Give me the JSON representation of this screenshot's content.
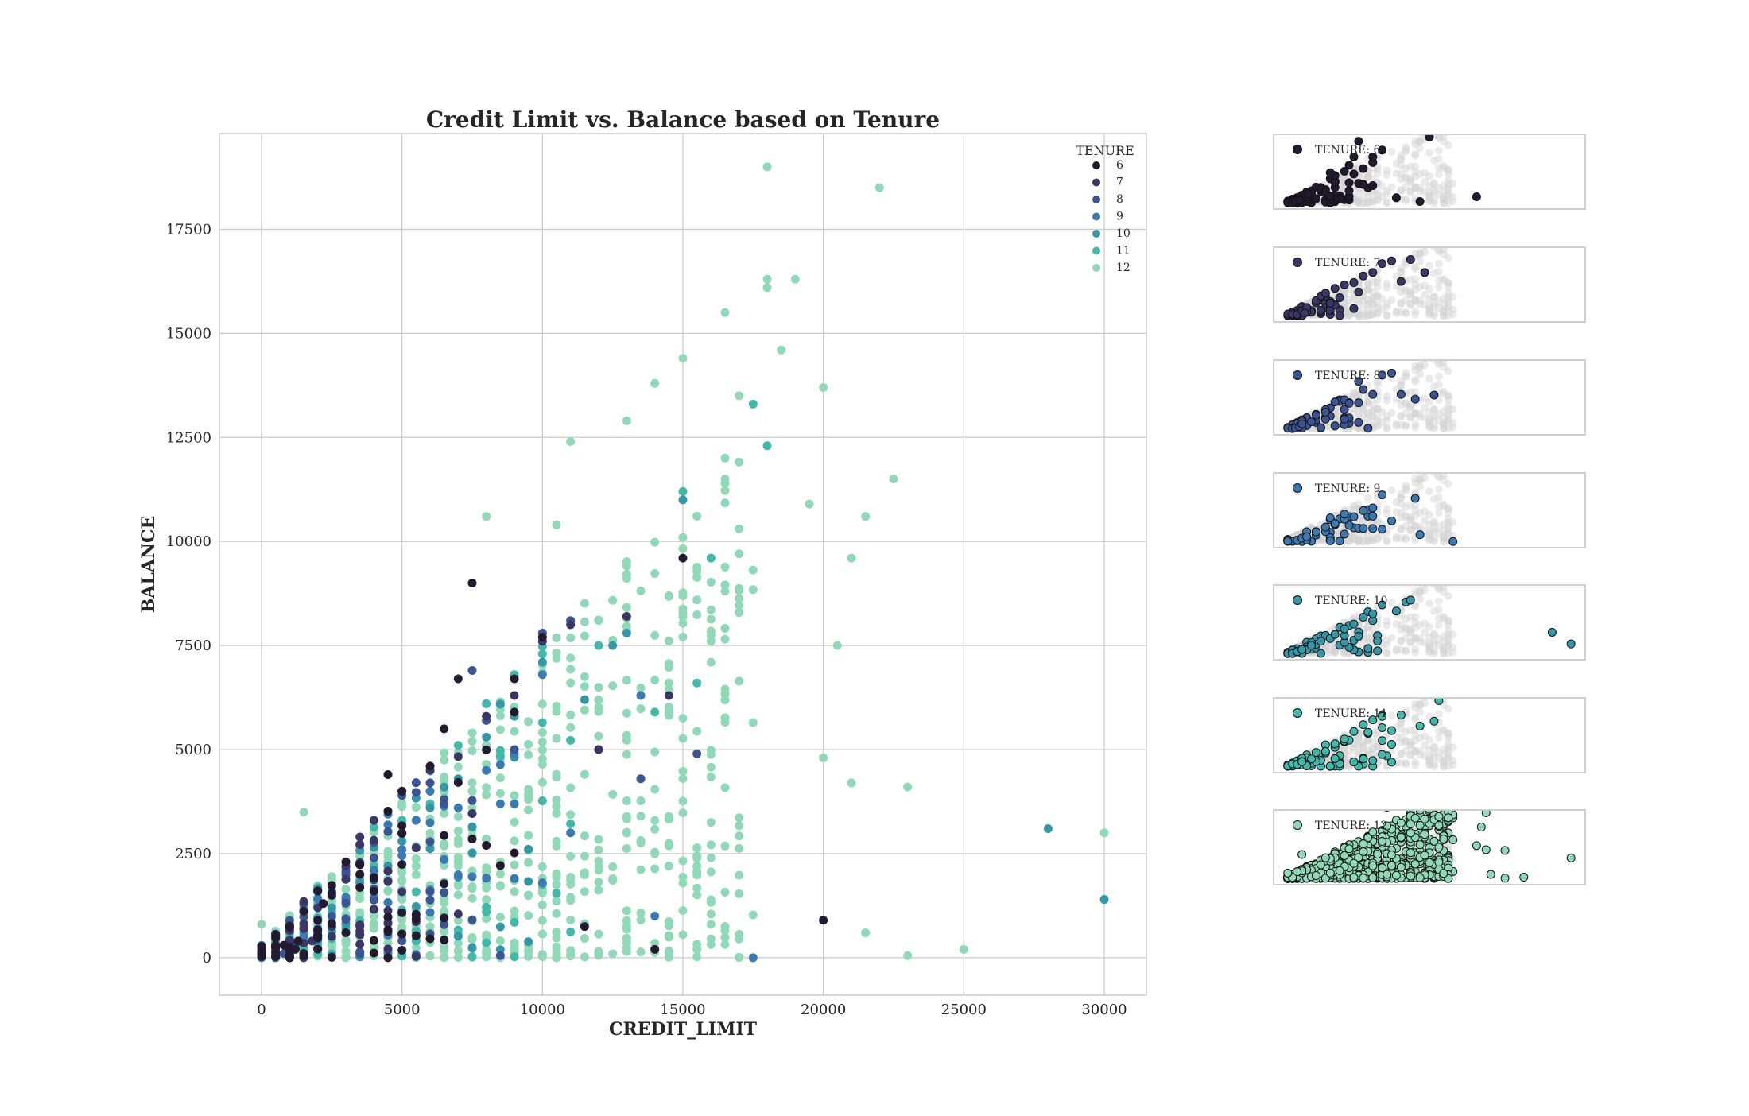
{
  "chart_data": [
    {
      "type": "scatter",
      "title": "Credit Limit vs. Balance based on Tenure",
      "xlabel": "CREDIT_LIMIT",
      "ylabel": "BALANCE",
      "xlim": [
        -1500,
        31500
      ],
      "ylim": [
        -900,
        19800
      ],
      "xticks": [
        0,
        5000,
        10000,
        15000,
        20000,
        25000,
        30000
      ],
      "yticks": [
        0,
        2500,
        5000,
        7500,
        10000,
        12500,
        15000,
        17500
      ],
      "grid": true,
      "legend": {
        "title": "TENURE",
        "placement": "top-right",
        "entries": [
          "6",
          "7",
          "8",
          "9",
          "10",
          "11",
          "12"
        ]
      },
      "series": [
        {
          "name": "6",
          "color": "#221b30",
          "x": [
            1000,
            1200,
            1500,
            500,
            800,
            2000,
            2500,
            3000,
            3500,
            4000,
            5000,
            6500,
            7000,
            7500,
            8000,
            9000,
            10000,
            11500,
            14000,
            15000,
            20000,
            1500,
            2200,
            9000,
            4500,
            1300
          ],
          "y": [
            0,
            200,
            100,
            30,
            300,
            900,
            1500,
            600,
            2000,
            1600,
            4000,
            5500,
            6700,
            9000,
            2700,
            5900,
            7700,
            750,
            200,
            9600,
            900,
            50,
            1300,
            6700,
            4400,
            400
          ]
        },
        {
          "name": "7",
          "color": "#3a3767",
          "x": [
            1000,
            1500,
            2000,
            3000,
            3500,
            4000,
            5000,
            6000,
            8000,
            9000,
            10000,
            11000,
            13000,
            14500,
            12000,
            1800
          ],
          "y": [
            200,
            700,
            1200,
            2200,
            2900,
            3300,
            4000,
            4500,
            5800,
            6300,
            7600,
            8000,
            8200,
            6300,
            5000,
            400
          ]
        },
        {
          "name": "8",
          "color": "#3b5494",
          "x": [
            800,
            1200,
            1500,
            2500,
            3000,
            4000,
            5000,
            6000,
            7500,
            8000,
            9000,
            10000,
            11000,
            12000,
            13500,
            15500,
            6500
          ],
          "y": [
            100,
            300,
            700,
            1000,
            2000,
            2400,
            3900,
            4200,
            6900,
            5700,
            5000,
            7800,
            8100,
            5000,
            4300,
            4900,
            3700
          ]
        },
        {
          "name": "9",
          "color": "#3a7ab3",
          "x": [
            1000,
            1500,
            2000,
            3000,
            4000,
            5000,
            6000,
            7000,
            8000,
            9000,
            10000,
            11000,
            13500,
            17500,
            10000,
            14000
          ],
          "y": [
            200,
            500,
            700,
            1400,
            2100,
            2600,
            4000,
            3600,
            4500,
            4900,
            6800,
            3000,
            6300,
            0,
            1800,
            1000
          ]
        },
        {
          "name": "10",
          "color": "#3497a8",
          "x": [
            1000,
            1500,
            2500,
            3500,
            5000,
            6000,
            7000,
            8000,
            9000,
            10000,
            11500,
            12500,
            13000,
            28000,
            30000,
            15000
          ],
          "y": [
            300,
            600,
            1200,
            1800,
            2800,
            3600,
            4300,
            5300,
            5800,
            7100,
            6200,
            7500,
            7800,
            3100,
            1400,
            11000
          ]
        },
        {
          "name": "11",
          "color": "#40b8aa",
          "x": [
            1000,
            1500,
            2500,
            4000,
            5000,
            6000,
            7000,
            8000,
            9000,
            10000,
            12000,
            14000,
            15000,
            15500,
            17500,
            18000,
            16000
          ],
          "y": [
            300,
            700,
            1100,
            2200,
            3300,
            4000,
            5100,
            6100,
            6800,
            7300,
            7500,
            5900,
            11200,
            6600,
            13300,
            12300,
            9600
          ]
        },
        {
          "name": "12",
          "color": "#8fd9b6",
          "x": [
            18000,
            22000,
            18000,
            18000,
            19000,
            16500,
            15000,
            18500,
            17000,
            20000,
            14000,
            13000,
            11000,
            10500,
            8000,
            22500,
            19500,
            21500,
            21000,
            20500,
            20000,
            21000,
            23000,
            25000,
            30000,
            23000,
            21500,
            1500,
            0
          ],
          "y": [
            19000,
            18500,
            16300,
            16100,
            16300,
            15500,
            14400,
            14600,
            13500,
            13700,
            13800,
            12900,
            12400,
            10400,
            10600,
            11500,
            10900,
            10600,
            9600,
            7500,
            4800,
            4200,
            4100,
            200,
            3000,
            50,
            600,
            3500,
            800
          ]
        }
      ]
    },
    {
      "type": "scatter",
      "subplots": [
        "TENURE: 6",
        "TENURE: 7",
        "TENURE: 8",
        "TENURE: 9",
        "TENURE: 10",
        "TENURE: 11",
        "TENURE: 12"
      ],
      "background_color": "#d3d3d3"
    }
  ]
}
